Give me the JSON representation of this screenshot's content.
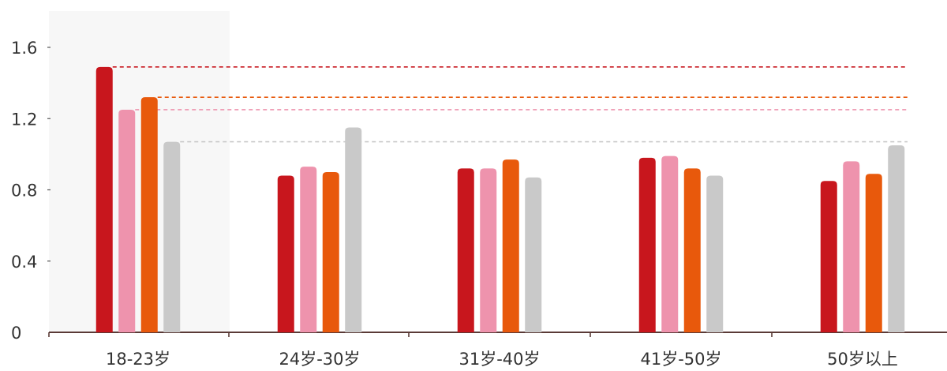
{
  "chart_data": {
    "type": "bar",
    "title": "",
    "xlabel": "",
    "ylabel": "",
    "categories": [
      "18-23岁",
      "24岁-30岁",
      "31岁-40岁",
      "41岁-50岁",
      "50岁以上"
    ],
    "series": [
      {
        "values": [
          1.49,
          0.88,
          0.92,
          0.98,
          0.85
        ],
        "color": "#c8161d"
      },
      {
        "values": [
          1.25,
          0.93,
          0.92,
          0.99,
          0.96
        ],
        "color": "#ee93ad"
      },
      {
        "values": [
          1.32,
          0.9,
          0.97,
          0.92,
          0.89
        ],
        "color": "#e8590c"
      },
      {
        "values": [
          1.07,
          1.15,
          0.87,
          0.88,
          1.05
        ],
        "color": "#c9c9c9"
      }
    ],
    "yticks": [
      "0",
      "0.4",
      "0.8",
      "1.2",
      "1.6"
    ],
    "ylim": [
      0,
      1.6
    ],
    "highlighted_category": "18-23岁",
    "reference_lines": "dashed lines at the 18-23岁 group's four values",
    "grid": false,
    "legend": "none"
  }
}
